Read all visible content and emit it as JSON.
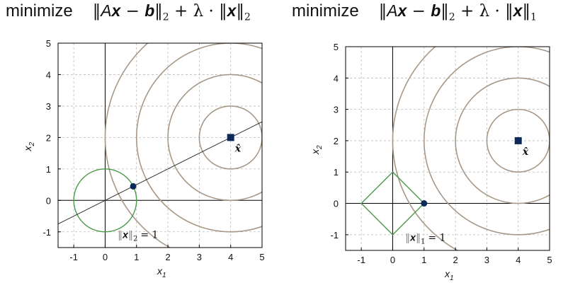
{
  "titles": {
    "left": {
      "word": "minimize",
      "A": "A",
      "x": "x",
      "b": "b",
      "lambda": "λ",
      "norm_sub_fit": "2",
      "norm_sub_reg": "2"
    },
    "right": {
      "word": "minimize",
      "A": "A",
      "x": "x",
      "b": "b",
      "lambda": "λ",
      "norm_sub_fit": "2",
      "norm_sub_reg": "1"
    }
  },
  "plots": [
    {
      "id": "left",
      "xlabel": "x",
      "xlabel_sub": "1",
      "ylabel": "x",
      "ylabel_sub": "2",
      "xlim": [
        -1.5,
        5
      ],
      "ylim": [
        -1.5,
        5
      ],
      "xticks": [
        -1,
        0,
        1,
        2,
        3,
        4,
        5
      ],
      "yticks": [
        -1,
        0,
        1,
        2,
        3,
        4,
        5
      ],
      "center": [
        4,
        2
      ],
      "center_label": "x̂",
      "contour_radii": [
        1,
        2,
        3,
        4
      ],
      "constraint": "l2-ball",
      "constraint_label": {
        "x": "x",
        "sub": "2",
        "eq": "= 1"
      },
      "solution": [
        0.894,
        0.447
      ],
      "line_through_origin_slope": 0.5
    },
    {
      "id": "right",
      "xlabel": "x",
      "xlabel_sub": "1",
      "ylabel": "x",
      "ylabel_sub": "2",
      "xlim": [
        -1.5,
        5
      ],
      "ylim": [
        -1.5,
        5
      ],
      "xticks": [
        -1,
        0,
        1,
        2,
        3,
        4,
        5
      ],
      "yticks": [
        -1,
        0,
        1,
        2,
        3,
        4,
        5
      ],
      "center": [
        4,
        2
      ],
      "center_label": "x̂",
      "contour_radii": [
        1,
        2,
        3,
        4
      ],
      "constraint": "l1-ball",
      "constraint_label": {
        "x": "x",
        "sub": "1",
        "eq": "= 1"
      },
      "solution": [
        1,
        0
      ]
    }
  ],
  "colors": {
    "contour": "#a89888",
    "constraint": "#4a9a4a",
    "marker": "#0b2a5a",
    "grid": "#bbbbbb",
    "axis": "#000000"
  }
}
